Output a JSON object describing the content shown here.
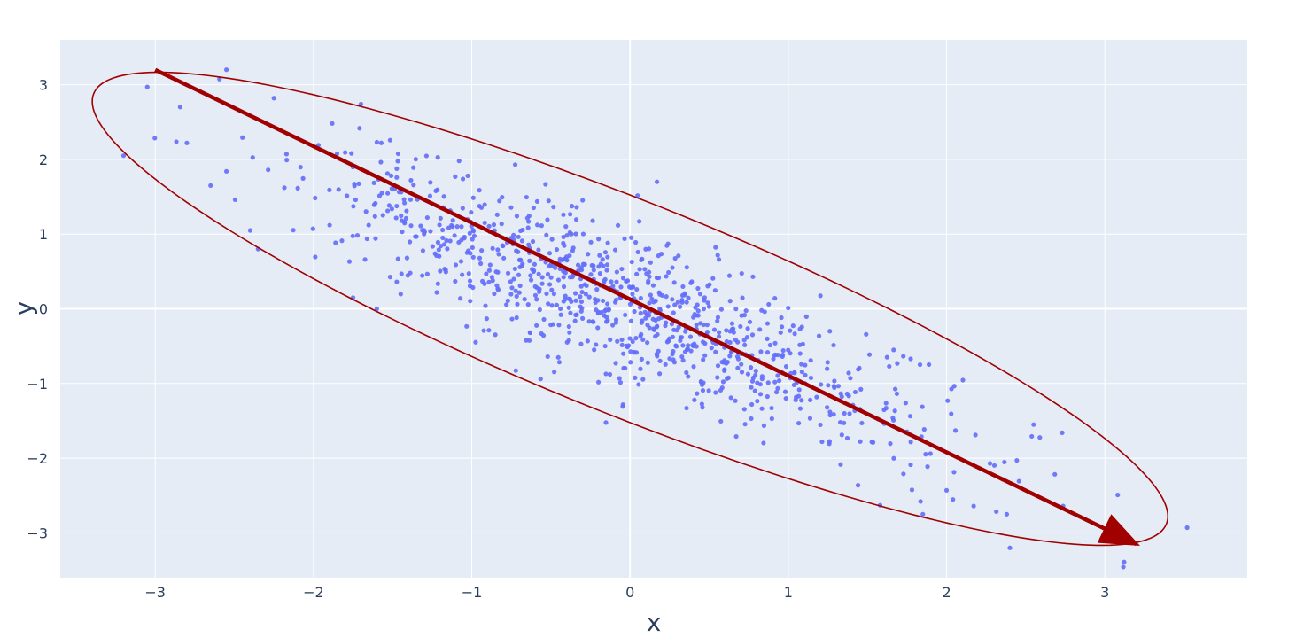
{
  "chart_data": {
    "type": "scatter",
    "title": "",
    "xlabel": "x",
    "ylabel": "y",
    "xlim": [
      -3.6,
      3.9
    ],
    "ylim": [
      -3.6,
      3.6
    ],
    "x_ticks": [
      -3,
      -2,
      -1,
      0,
      1,
      2,
      3
    ],
    "y_ticks": [
      -3,
      -2,
      -1,
      0,
      1,
      2,
      3
    ],
    "x_tick_labels": [
      "−3",
      "−2",
      "−1",
      "0",
      "1",
      "2",
      "3"
    ],
    "y_tick_labels": [
      "−3",
      "−2",
      "−1",
      "0",
      "1",
      "2",
      "3"
    ],
    "grid": true,
    "legend": "none",
    "plot_background": "#e5ecf6",
    "grid_color": "#ffffff",
    "point_color": "#636efa",
    "overlay_color": "#a00000",
    "points": {
      "count": 1000,
      "center": [
        0.0,
        0.0
      ],
      "std_x": 1.0,
      "std_y": 1.0,
      "correlation": -0.86,
      "seed": 7,
      "marked_points": [
        [
          -3.2,
          2.05
        ],
        [
          -3.05,
          2.97
        ],
        [
          -2.8,
          2.22
        ],
        [
          -2.55,
          3.2
        ],
        [
          -2.65,
          1.65
        ],
        [
          -2.55,
          1.84
        ],
        [
          -2.4,
          1.05
        ],
        [
          -2.35,
          0.8
        ],
        [
          -2.25,
          2.82
        ],
        [
          -1.7,
          2.74
        ],
        [
          0.17,
          1.7
        ],
        [
          3.52,
          -2.93
        ],
        [
          2.4,
          -3.2
        ],
        [
          2.38,
          -2.75
        ],
        [
          2.55,
          -1.55
        ],
        [
          1.58,
          -2.63
        ],
        [
          1.85,
          -2.75
        ],
        [
          2.0,
          -2.43
        ],
        [
          -1.6,
          0.0
        ],
        [
          -1.75,
          0.15
        ]
      ]
    },
    "principal_axis": {
      "start": [
        -3.0,
        3.2
      ],
      "end": [
        3.2,
        -3.15
      ]
    },
    "ellipse": {
      "center": [
        0.0,
        0.0
      ],
      "semi_major": 4.5,
      "semi_minor": 1.15,
      "angle_deg": -42.7
    }
  }
}
